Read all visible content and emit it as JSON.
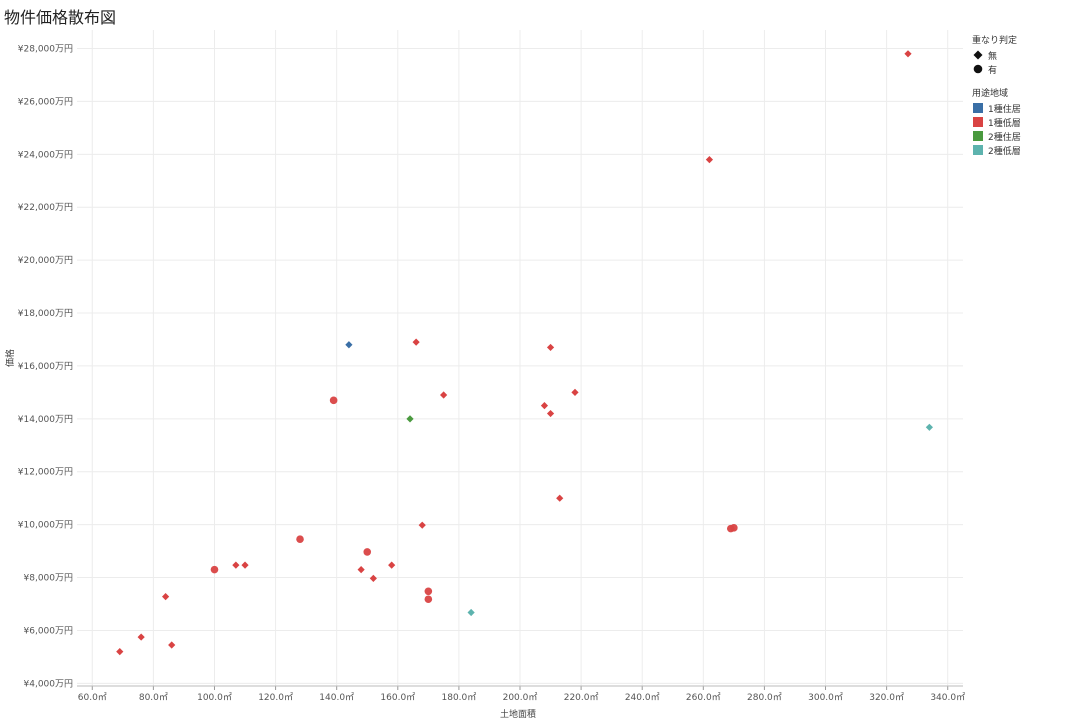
{
  "title": "物件価格散布図",
  "legend": {
    "shape_title": "重なり判定",
    "shapes": [
      {
        "symbol": "diamond",
        "label": "無"
      },
      {
        "symbol": "circle",
        "label": "有"
      }
    ],
    "color_title": "用途地域",
    "colors": [
      {
        "label": "1種住居",
        "color": "#3a6fa6"
      },
      {
        "label": "1種低層",
        "color": "#d94343"
      },
      {
        "label": "2種住居",
        "color": "#4a9a3f"
      },
      {
        "label": "2種低層",
        "color": "#5db3ae"
      }
    ]
  },
  "chart_data": {
    "type": "scatter",
    "xlabel": "土地面積",
    "ylabel": "価格",
    "xlim": [
      55,
      345
    ],
    "ylim": [
      3900,
      28700
    ],
    "x_ticks": [
      60,
      80,
      100,
      120,
      140,
      160,
      180,
      200,
      220,
      240,
      260,
      280,
      300,
      320,
      340
    ],
    "x_tick_labels": [
      "60.0㎡",
      "80.0㎡",
      "100.0㎡",
      "120.0㎡",
      "140.0㎡",
      "160.0㎡",
      "180.0㎡",
      "200.0㎡",
      "220.0㎡",
      "240.0㎡",
      "260.0㎡",
      "280.0㎡",
      "300.0㎡",
      "320.0㎡",
      "340.0㎡"
    ],
    "y_ticks": [
      4000,
      6000,
      8000,
      10000,
      12000,
      14000,
      16000,
      18000,
      20000,
      22000,
      24000,
      26000,
      28000
    ],
    "y_tick_labels": [
      "¥4,000万円",
      "¥6,000万円",
      "¥8,000万円",
      "¥10,000万円",
      "¥12,000万円",
      "¥14,000万円",
      "¥16,000万円",
      "¥18,000万円",
      "¥20,000万円",
      "¥22,000万円",
      "¥24,000万円",
      "¥26,000万円",
      "¥28,000万円"
    ],
    "grid": true,
    "legend_position": "right",
    "points": [
      {
        "x": 69,
        "y": 5200,
        "zone": "1種低層",
        "overlap": "無"
      },
      {
        "x": 76,
        "y": 5750,
        "zone": "1種低層",
        "overlap": "無"
      },
      {
        "x": 84,
        "y": 7280,
        "zone": "1種低層",
        "overlap": "無"
      },
      {
        "x": 86,
        "y": 5450,
        "zone": "1種低層",
        "overlap": "無"
      },
      {
        "x": 100,
        "y": 8300,
        "zone": "1種低層",
        "overlap": "有"
      },
      {
        "x": 107,
        "y": 8470,
        "zone": "1種低層",
        "overlap": "無"
      },
      {
        "x": 110,
        "y": 8470,
        "zone": "1種低層",
        "overlap": "無"
      },
      {
        "x": 128,
        "y": 9450,
        "zone": "1種低層",
        "overlap": "有"
      },
      {
        "x": 139,
        "y": 14700,
        "zone": "1種低層",
        "overlap": "有"
      },
      {
        "x": 144,
        "y": 16800,
        "zone": "1種住居",
        "overlap": "無"
      },
      {
        "x": 148,
        "y": 8300,
        "zone": "1種低層",
        "overlap": "無"
      },
      {
        "x": 150,
        "y": 8970,
        "zone": "1種低層",
        "overlap": "有"
      },
      {
        "x": 152,
        "y": 7970,
        "zone": "1種低層",
        "overlap": "無"
      },
      {
        "x": 158,
        "y": 8470,
        "zone": "1種低層",
        "overlap": "無"
      },
      {
        "x": 164,
        "y": 14000,
        "zone": "2種住居",
        "overlap": "無"
      },
      {
        "x": 166,
        "y": 16900,
        "zone": "1種低層",
        "overlap": "無"
      },
      {
        "x": 168,
        "y": 9980,
        "zone": "1種低層",
        "overlap": "無"
      },
      {
        "x": 170,
        "y": 7480,
        "zone": "1種低層",
        "overlap": "有"
      },
      {
        "x": 170,
        "y": 7180,
        "zone": "1種低層",
        "overlap": "有"
      },
      {
        "x": 175,
        "y": 14900,
        "zone": "1種低層",
        "overlap": "無"
      },
      {
        "x": 184,
        "y": 6680,
        "zone": "2種低層",
        "overlap": "無"
      },
      {
        "x": 208,
        "y": 14500,
        "zone": "1種低層",
        "overlap": "無"
      },
      {
        "x": 210,
        "y": 16700,
        "zone": "1種低層",
        "overlap": "無"
      },
      {
        "x": 210,
        "y": 14200,
        "zone": "1種低層",
        "overlap": "無"
      },
      {
        "x": 213,
        "y": 11000,
        "zone": "1種低層",
        "overlap": "無"
      },
      {
        "x": 218,
        "y": 15000,
        "zone": "1種低層",
        "overlap": "無"
      },
      {
        "x": 262,
        "y": 23800,
        "zone": "1種低層",
        "overlap": "無"
      },
      {
        "x": 269,
        "y": 9850,
        "zone": "1種低層",
        "overlap": "有"
      },
      {
        "x": 270,
        "y": 9880,
        "zone": "1種低層",
        "overlap": "有"
      },
      {
        "x": 327,
        "y": 27800,
        "zone": "1種低層",
        "overlap": "無"
      },
      {
        "x": 334,
        "y": 13680,
        "zone": "2種低層",
        "overlap": "無"
      }
    ]
  }
}
